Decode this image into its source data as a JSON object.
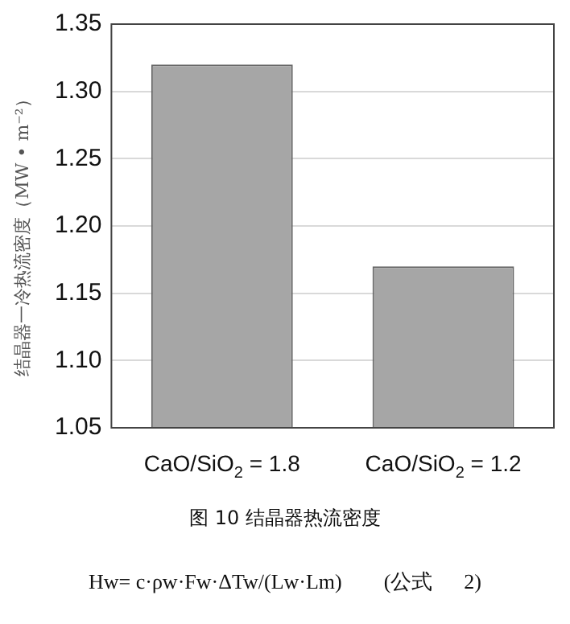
{
  "chart_data": {
    "type": "bar",
    "ylabel": "结晶器一冷热流密度（MW • m⁻²）",
    "categories": [
      "CaO/SiO$_{2}$ = 1.8",
      "CaO/SiO$_{2}$ = 1.2"
    ],
    "values": [
      1.32,
      1.17
    ],
    "color": "#a6a6a6",
    "ylim": [
      1.05,
      1.35
    ],
    "yticks": [
      {
        "value": 1.05,
        "label": "1.05"
      },
      {
        "value": 1.1,
        "label": "1.10"
      },
      {
        "value": 1.15,
        "label": "1.15"
      },
      {
        "value": 1.2,
        "label": "1.20"
      },
      {
        "value": 1.25,
        "label": "1.25"
      },
      {
        "value": 1.3,
        "label": "1.30"
      },
      {
        "value": 1.35,
        "label": "1.35"
      }
    ],
    "grid": "y",
    "legend": false,
    "annotations": [
      "图 10 结晶器热流密度",
      "Hw= c·ρw·Fw·ΔTw/(Lw·Lm)        (公式      2)"
    ]
  }
}
